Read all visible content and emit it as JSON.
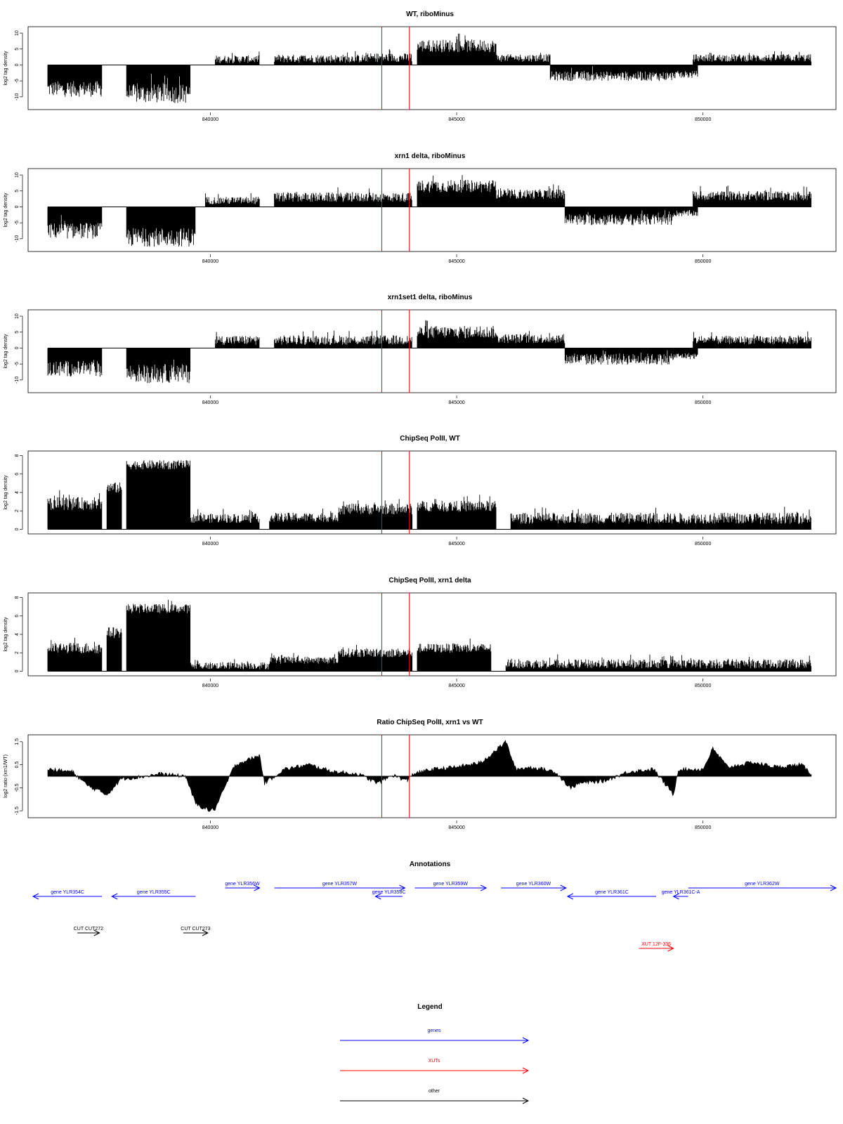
{
  "figure": {
    "colors": {
      "genes": "#0000ff",
      "xuts": "#ff0000",
      "other": "#000000",
      "marker": "#ff0000"
    }
  },
  "chart_data": [
    {
      "type": "bar",
      "title": "WT, riboMinus",
      "ylabel": "log2 tag density",
      "xlim": [
        836300,
        852700
      ],
      "ylim": [
        -14,
        12
      ],
      "yticks": [
        -10,
        -5,
        0,
        5,
        10
      ],
      "xticks": [
        840000,
        845000,
        850000
      ],
      "marker_lines_x": [
        843480,
        844040
      ],
      "segments": [
        {
          "x0": 836700,
          "x1": 837800,
          "level": -7.5,
          "spread": 2.5
        },
        {
          "x0": 838300,
          "x1": 839600,
          "level": -9,
          "spread": 3
        },
        {
          "x0": 840100,
          "x1": 841000,
          "level": 1.8,
          "spread": 1.2
        },
        {
          "x0": 841300,
          "x1": 843200,
          "level": 2,
          "spread": 1.3
        },
        {
          "x0": 843200,
          "x1": 844100,
          "level": 2.3,
          "spread": 1.4
        },
        {
          "x0": 844200,
          "x1": 845800,
          "level": 6,
          "spread": 2
        },
        {
          "x0": 845800,
          "x1": 846900,
          "level": 2.2,
          "spread": 1.2
        },
        {
          "x0": 846900,
          "x1": 849400,
          "level": -3.5,
          "spread": 1.5
        },
        {
          "x0": 849400,
          "x1": 849900,
          "level": -3,
          "spread": 1.2
        },
        {
          "x0": 849800,
          "x1": 852200,
          "level": 2.2,
          "spread": 1.2
        }
      ]
    },
    {
      "type": "bar",
      "title": "xrn1 delta, riboMinus",
      "ylabel": "log2 tag density",
      "xlim": [
        836300,
        852700
      ],
      "ylim": [
        -14,
        12
      ],
      "yticks": [
        -10,
        -5,
        0,
        5,
        10
      ],
      "xticks": [
        840000,
        845000,
        850000
      ],
      "marker_lines_x": [
        843480,
        844040
      ],
      "segments": [
        {
          "x0": 836700,
          "x1": 837800,
          "level": -7.5,
          "spread": 2.5
        },
        {
          "x0": 838300,
          "x1": 839700,
          "level": -9.5,
          "spread": 3
        },
        {
          "x0": 839900,
          "x1": 841000,
          "level": 2,
          "spread": 1.2
        },
        {
          "x0": 841300,
          "x1": 843200,
          "level": 3,
          "spread": 1.5
        },
        {
          "x0": 843200,
          "x1": 844100,
          "level": 3,
          "spread": 1.5
        },
        {
          "x0": 844200,
          "x1": 845800,
          "level": 6.5,
          "spread": 2
        },
        {
          "x0": 845800,
          "x1": 847200,
          "level": 4,
          "spread": 1.5
        },
        {
          "x0": 847200,
          "x1": 849400,
          "level": -4,
          "spread": 1.8
        },
        {
          "x0": 849400,
          "x1": 849900,
          "level": -2,
          "spread": 1
        },
        {
          "x0": 849800,
          "x1": 852200,
          "level": 3.5,
          "spread": 1.5
        }
      ]
    },
    {
      "type": "bar",
      "title": "xrn1set1 delta, riboMinus",
      "ylabel": "log2 tag density",
      "xlim": [
        836300,
        852700
      ],
      "ylim": [
        -14,
        12
      ],
      "yticks": [
        -10,
        -5,
        0,
        5,
        10
      ],
      "xticks": [
        840000,
        845000,
        850000
      ],
      "marker_lines_x": [
        843480,
        844040
      ],
      "segments": [
        {
          "x0": 836700,
          "x1": 837800,
          "level": -6.5,
          "spread": 2.5
        },
        {
          "x0": 838300,
          "x1": 839600,
          "level": -8,
          "spread": 3
        },
        {
          "x0": 840100,
          "x1": 841000,
          "level": 2.5,
          "spread": 1.5
        },
        {
          "x0": 841300,
          "x1": 843200,
          "level": 2.5,
          "spread": 1.5
        },
        {
          "x0": 843200,
          "x1": 844100,
          "level": 2.5,
          "spread": 1.5
        },
        {
          "x0": 844200,
          "x1": 845800,
          "level": 5,
          "spread": 2
        },
        {
          "x0": 845800,
          "x1": 847200,
          "level": 3,
          "spread": 1.5
        },
        {
          "x0": 847200,
          "x1": 849400,
          "level": -3.5,
          "spread": 1.8
        },
        {
          "x0": 849400,
          "x1": 849900,
          "level": -2.5,
          "spread": 1
        },
        {
          "x0": 849800,
          "x1": 852200,
          "level": 2.5,
          "spread": 1.3
        }
      ]
    },
    {
      "type": "bar",
      "title": "ChipSeq PolII, WT",
      "ylabel": "log2 tag density",
      "xlim": [
        836300,
        852700
      ],
      "ylim": [
        -0.5,
        8.5
      ],
      "yticks": [
        0,
        2,
        4,
        6,
        8
      ],
      "xticks": [
        840000,
        845000,
        850000
      ],
      "marker_lines_x": [
        843480,
        844040
      ],
      "segments": [
        {
          "x0": 836700,
          "x1": 837800,
          "level": 2.8,
          "spread": 0.7
        },
        {
          "x0": 837900,
          "x1": 838200,
          "level": 4.5,
          "spread": 0.6
        },
        {
          "x0": 838300,
          "x1": 839600,
          "level": 7,
          "spread": 0.5
        },
        {
          "x0": 839600,
          "x1": 841000,
          "level": 1.2,
          "spread": 0.5
        },
        {
          "x0": 841200,
          "x1": 842600,
          "level": 1.3,
          "spread": 0.5
        },
        {
          "x0": 842600,
          "x1": 844100,
          "level": 2.2,
          "spread": 0.6
        },
        {
          "x0": 844200,
          "x1": 845800,
          "level": 2.5,
          "spread": 0.6
        },
        {
          "x0": 846100,
          "x1": 852200,
          "level": 1.2,
          "spread": 0.6
        }
      ]
    },
    {
      "type": "bar",
      "title": "ChipSeq PolII, xrn1 delta",
      "ylabel": "log2 tag density",
      "xlim": [
        836300,
        852700
      ],
      "ylim": [
        -0.5,
        8.5
      ],
      "yticks": [
        0,
        2,
        4,
        6,
        8
      ],
      "xticks": [
        840000,
        845000,
        850000
      ],
      "marker_lines_x": [
        843480,
        844040
      ],
      "segments": [
        {
          "x0": 836700,
          "x1": 837800,
          "level": 2.5,
          "spread": 0.6
        },
        {
          "x0": 837900,
          "x1": 838200,
          "level": 4.2,
          "spread": 0.6
        },
        {
          "x0": 838300,
          "x1": 839600,
          "level": 6.8,
          "spread": 0.5
        },
        {
          "x0": 839600,
          "x1": 841200,
          "level": 0.6,
          "spread": 0.4
        },
        {
          "x0": 841200,
          "x1": 842600,
          "level": 1.2,
          "spread": 0.4
        },
        {
          "x0": 842600,
          "x1": 844100,
          "level": 2,
          "spread": 0.5
        },
        {
          "x0": 844200,
          "x1": 845700,
          "level": 2.5,
          "spread": 0.5
        },
        {
          "x0": 846000,
          "x1": 852200,
          "level": 0.8,
          "spread": 0.5
        }
      ]
    },
    {
      "type": "area",
      "title": "Ratio ChipSeq PolII, xrn1 vs WT",
      "ylabel": "log2 ratio (xrn1/WT)",
      "xlim": [
        836300,
        852700
      ],
      "ylim": [
        -1.8,
        1.8
      ],
      "yticks": [
        -1.5,
        -0.5,
        0.5,
        1.5
      ],
      "ytick_labels": [
        "-1.5",
        "-0.5",
        "0.5",
        "1.5"
      ],
      "xticks": [
        840000,
        845000,
        850000
      ],
      "marker_lines_x": [
        843480,
        844040
      ],
      "x": [
        836700,
        837200,
        837500,
        837900,
        838200,
        838500,
        839000,
        839500,
        839700,
        840000,
        840100,
        840500,
        841000,
        841100,
        841500,
        842000,
        842500,
        843000,
        843400,
        843700,
        844000,
        844100,
        844500,
        845000,
        845500,
        846000,
        846200,
        846500,
        847000,
        847300,
        847500,
        848000,
        848500,
        849000,
        849400,
        849500,
        850000,
        850200,
        850500,
        851000,
        851500,
        852000,
        852200
      ],
      "y": [
        0.3,
        0.2,
        -0.4,
        -0.8,
        -0.1,
        -0.05,
        0.1,
        0.0,
        -1.2,
        -1.5,
        -1.4,
        0.5,
        0.9,
        -0.3,
        0.3,
        0.5,
        0.2,
        0.1,
        -0.3,
        0.05,
        -0.2,
        0.1,
        0.3,
        0.4,
        0.6,
        1.5,
        0.3,
        0.4,
        0.2,
        -0.5,
        -0.3,
        -0.2,
        0.2,
        0.3,
        -0.8,
        0.3,
        0.3,
        1.2,
        0.4,
        0.6,
        0.4,
        0.5,
        0.1
      ]
    }
  ],
  "annotations": {
    "title": "Annotations",
    "xlim": [
      836300,
      852700
    ],
    "items": [
      {
        "label": "gene YLR354C",
        "type": "gene",
        "start": 837800,
        "end": 836400,
        "level": 0
      },
      {
        "label": "gene YLR355C",
        "type": "gene",
        "start": 839700,
        "end": 838000,
        "level": 0
      },
      {
        "label": "gene YLR356W",
        "type": "gene",
        "start": 840300,
        "end": 841000,
        "level": 1
      },
      {
        "label": "gene YLR357W",
        "type": "gene",
        "start": 841300,
        "end": 843950,
        "level": 1
      },
      {
        "label": "gene YLR358C",
        "type": "gene",
        "start": 843900,
        "end": 843350,
        "level": 0
      },
      {
        "label": "gene YLR359W",
        "type": "gene",
        "start": 844150,
        "end": 845600,
        "level": 1
      },
      {
        "label": "gene YLR360W",
        "type": "gene",
        "start": 845900,
        "end": 847220,
        "level": 1
      },
      {
        "label": "gene YLR361C",
        "type": "gene",
        "start": 849050,
        "end": 847250,
        "level": 0
      },
      {
        "label": "gene YLR361C-A",
        "type": "gene",
        "start": 849700,
        "end": 849400,
        "level": 0
      },
      {
        "label": "gene YLR362W",
        "type": "gene",
        "start": 849700,
        "end": 852700,
        "level": 1
      },
      {
        "label": "CUT CUT272",
        "type": "other",
        "start": 837300,
        "end": 837750,
        "level": 3
      },
      {
        "label": "CUT CUT273",
        "type": "other",
        "start": 839450,
        "end": 839950,
        "level": 3
      },
      {
        "label": "XUT 12F-336",
        "type": "xut",
        "start": 848700,
        "end": 849400,
        "level": 4
      }
    ]
  },
  "legend": {
    "title": "Legend",
    "items": [
      {
        "label": "genes",
        "type": "gene"
      },
      {
        "label": "XUTs",
        "type": "xut"
      },
      {
        "label": "other",
        "type": "other"
      }
    ]
  }
}
